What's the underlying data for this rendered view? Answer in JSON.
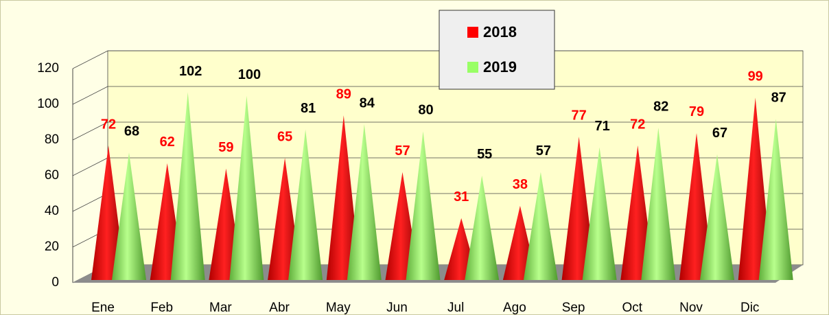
{
  "chart_data": {
    "type": "cone3d",
    "categories": [
      "Ene",
      "Feb",
      "Mar",
      "Abr",
      "May",
      "Jun",
      "Jul",
      "Ago",
      "Sep",
      "Oct",
      "Nov",
      "Dic"
    ],
    "series": [
      {
        "name": "2018",
        "color": "#ff0000",
        "values": [
          72,
          62,
          59,
          65,
          89,
          57,
          31,
          38,
          77,
          72,
          79,
          99
        ]
      },
      {
        "name": "2019",
        "color": "#99ff66",
        "values": [
          68,
          102,
          100,
          81,
          84,
          80,
          55,
          57,
          71,
          82,
          67,
          87
        ]
      }
    ],
    "ylim": [
      0,
      120
    ],
    "yticks": [
      0,
      20,
      40,
      60,
      80,
      100,
      120
    ],
    "grid": true,
    "legend": "top"
  }
}
